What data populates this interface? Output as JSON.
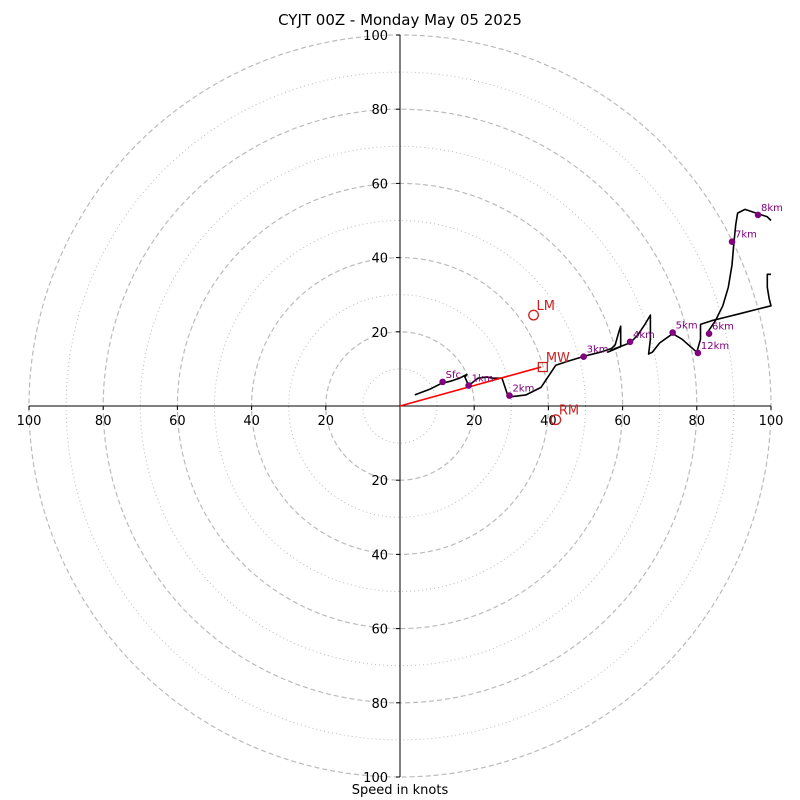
{
  "chart_data": {
    "type": "line",
    "chart_kind": "hodograph",
    "title": "CYJT 00Z - Monday May 05 2025",
    "xlabel": "Speed in knots",
    "ylabel": "",
    "xlim": [
      -100,
      100
    ],
    "ylim": [
      -100,
      100
    ],
    "rings": {
      "dashed": [
        20,
        40,
        60,
        80,
        100
      ],
      "dotted": [
        10,
        30,
        50,
        70,
        90
      ],
      "color": "#bbbbbb"
    },
    "ticks": [
      -100,
      -80,
      -60,
      -40,
      -20,
      20,
      40,
      60,
      80,
      100
    ],
    "tick_labels": [
      "100",
      "80",
      "60",
      "40",
      "20",
      "20",
      "40",
      "60",
      "80",
      "100"
    ],
    "hodograph": {
      "color": "#000000",
      "points": [
        [
          4,
          3
        ],
        [
          8,
          4.5
        ],
        [
          11,
          6
        ],
        [
          14,
          6.8
        ],
        [
          16,
          7.5
        ],
        [
          18,
          8.5
        ],
        [
          17.5,
          7.8
        ],
        [
          18.5,
          5.5
        ],
        [
          21,
          7.5
        ],
        [
          23.5,
          7.8
        ],
        [
          25,
          7.5
        ],
        [
          27.5,
          7.5
        ],
        [
          29,
          3
        ],
        [
          30,
          2.5
        ],
        [
          34,
          3
        ],
        [
          38,
          5
        ],
        [
          40,
          8
        ],
        [
          42,
          11
        ],
        [
          45,
          12
        ],
        [
          50,
          13.5
        ],
        [
          54,
          14.5
        ],
        [
          57,
          15.5
        ],
        [
          58,
          16.5
        ],
        [
          59,
          20
        ],
        [
          59.5,
          21.5
        ],
        [
          59.5,
          16
        ],
        [
          56,
          14.5
        ],
        [
          58,
          15.5
        ],
        [
          62,
          17
        ],
        [
          64,
          19
        ],
        [
          66,
          22
        ],
        [
          67.5,
          24.5
        ],
        [
          67.5,
          18
        ],
        [
          67,
          14
        ],
        [
          68,
          14.5
        ],
        [
          70,
          17
        ],
        [
          73.5,
          19.5
        ],
        [
          76,
          18
        ],
        [
          80,
          14.5
        ],
        [
          81,
          18
        ],
        [
          81,
          22
        ],
        [
          84,
          23
        ],
        [
          88,
          24
        ],
        [
          92,
          25
        ],
        [
          96,
          26
        ],
        [
          100,
          27
        ],
        [
          99.5,
          29
        ],
        [
          99,
          32
        ],
        [
          99,
          35.5
        ],
        [
          100,
          35.5
        ]
      ],
      "upper_branch": [
        [
          83,
          20
        ],
        [
          85,
          23
        ],
        [
          87,
          27
        ],
        [
          88.5,
          32
        ],
        [
          89.5,
          38
        ],
        [
          90,
          44
        ],
        [
          90.5,
          49
        ],
        [
          91,
          52
        ],
        [
          93,
          53
        ],
        [
          96,
          52
        ],
        [
          99,
          51
        ],
        [
          100,
          50
        ]
      ]
    },
    "height_markers": {
      "color": "#800080",
      "points": [
        {
          "label": "Sfc",
          "u": 11.5,
          "v": 6.5
        },
        {
          "label": "1km",
          "u": 18.5,
          "v": 5.5
        },
        {
          "label": "2km",
          "u": 29.5,
          "v": 2.8
        },
        {
          "label": "3km",
          "u": 49.5,
          "v": 13.3
        },
        {
          "label": "4km",
          "u": 62,
          "v": 17.3
        },
        {
          "label": "5km",
          "u": 73.5,
          "v": 19.8
        },
        {
          "label": "6km",
          "u": 83.3,
          "v": 19.5
        },
        {
          "label": "7km",
          "u": 89.5,
          "v": 44.3
        },
        {
          "label": "8km",
          "u": 96.5,
          "v": 51.5
        },
        {
          "label": "12km",
          "u": 80.3,
          "v": 14.3
        }
      ]
    },
    "storm_motion": {
      "color": "#cc2222",
      "vector_from": [
        0,
        0
      ],
      "vector_to": [
        38,
        10.5
      ],
      "points": [
        {
          "label": "MW",
          "u": 38.5,
          "v": 10.5,
          "marker": "square"
        },
        {
          "label": "LM",
          "u": 36,
          "v": 24.5,
          "marker": "circle"
        },
        {
          "label": "RM",
          "u": 42,
          "v": -3.7,
          "marker": "circle"
        }
      ]
    }
  }
}
